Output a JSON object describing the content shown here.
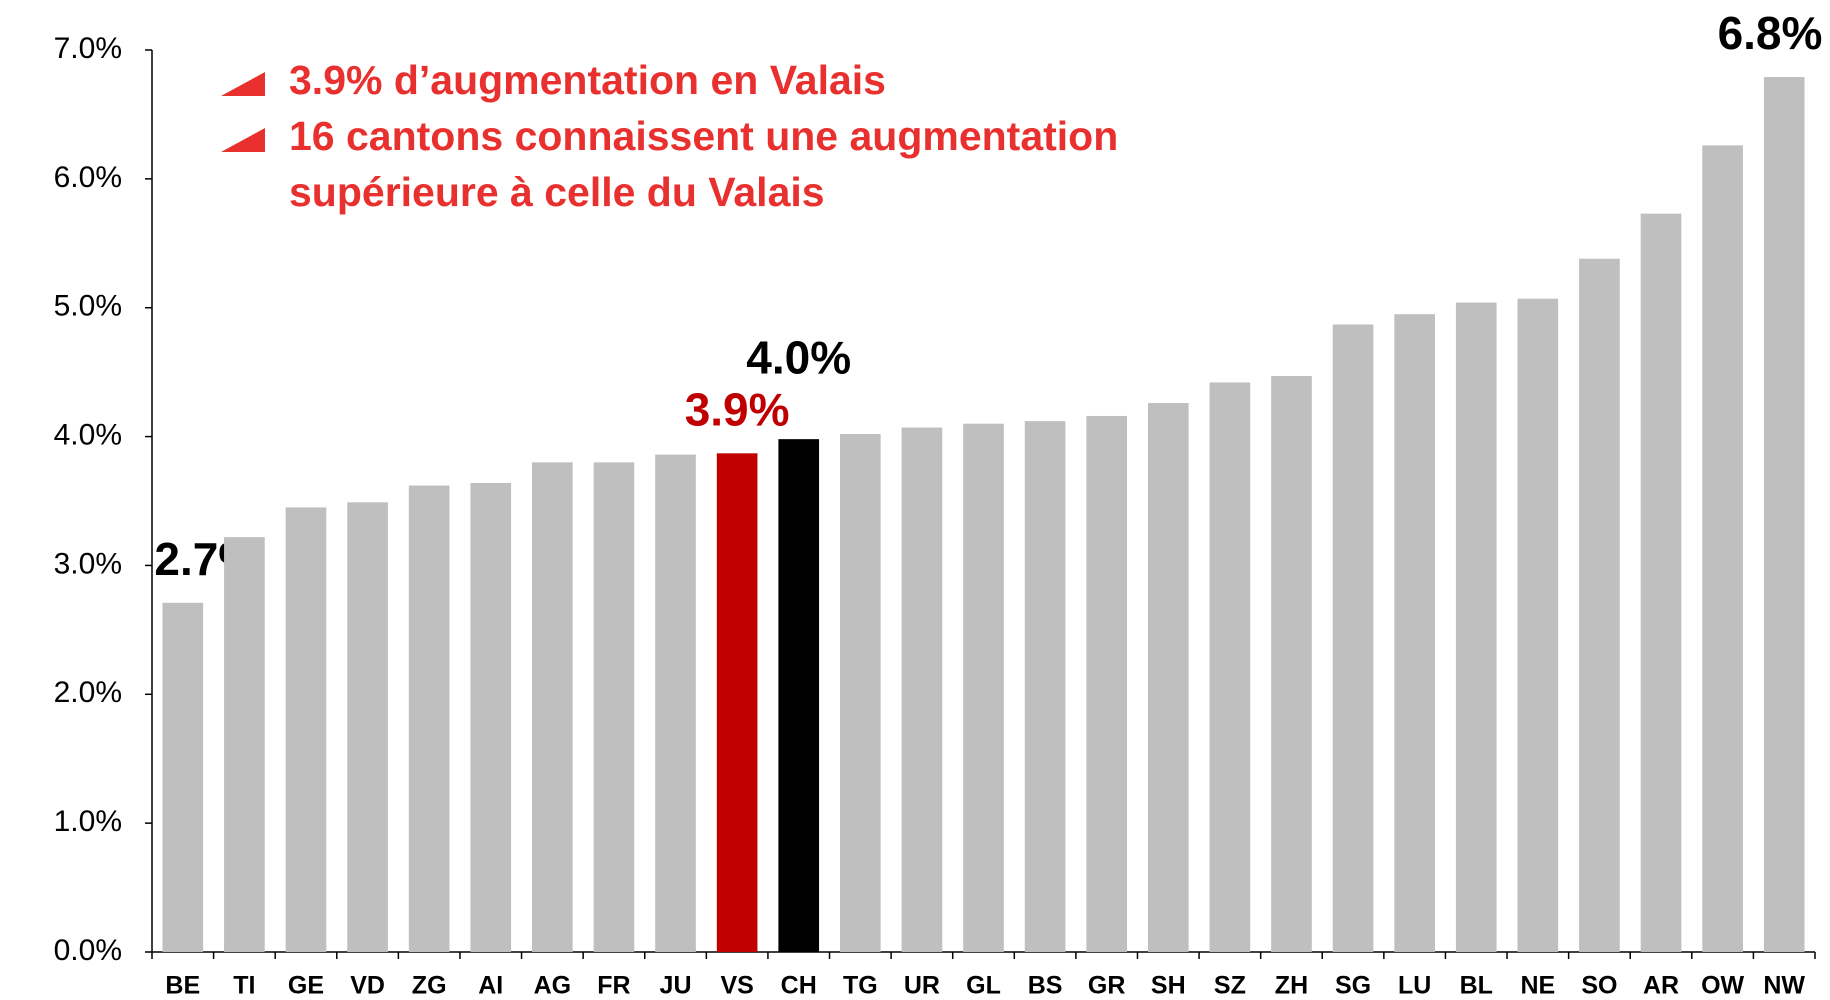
{
  "chart_data": {
    "type": "bar",
    "categories": [
      "BE",
      "TI",
      "GE",
      "VD",
      "ZG",
      "AI",
      "AG",
      "FR",
      "JU",
      "VS",
      "CH",
      "TG",
      "UR",
      "GL",
      "BS",
      "GR",
      "SH",
      "SZ",
      "ZH",
      "SG",
      "LU",
      "BL",
      "NE",
      "SO",
      "AR",
      "OW",
      "NW"
    ],
    "values": [
      2.71,
      3.22,
      3.45,
      3.49,
      3.62,
      3.64,
      3.8,
      3.8,
      3.86,
      3.87,
      3.98,
      4.02,
      4.07,
      4.1,
      4.12,
      4.16,
      4.26,
      4.42,
      4.47,
      4.87,
      4.95,
      5.04,
      5.07,
      5.38,
      5.73,
      6.26,
      6.79
    ],
    "value_labels": [
      "2.7%",
      null,
      null,
      null,
      null,
      null,
      null,
      null,
      null,
      "3.9%",
      "4.0%",
      null,
      null,
      null,
      null,
      null,
      null,
      null,
      null,
      null,
      null,
      null,
      null,
      null,
      null,
      null,
      "6.8%"
    ],
    "colors": [
      "#bfbfbf",
      "#bfbfbf",
      "#bfbfbf",
      "#bfbfbf",
      "#bfbfbf",
      "#bfbfbf",
      "#bfbfbf",
      "#bfbfbf",
      "#bfbfbf",
      "#c00000",
      "#000000",
      "#bfbfbf",
      "#bfbfbf",
      "#bfbfbf",
      "#bfbfbf",
      "#bfbfbf",
      "#bfbfbf",
      "#bfbfbf",
      "#bfbfbf",
      "#bfbfbf",
      "#bfbfbf",
      "#bfbfbf",
      "#bfbfbf",
      "#bfbfbf",
      "#bfbfbf",
      "#bfbfbf",
      "#bfbfbf"
    ],
    "value_label_colors": [
      "#000000",
      null,
      null,
      null,
      null,
      null,
      null,
      null,
      null,
      "#c00000",
      "#000000",
      null,
      null,
      null,
      null,
      null,
      null,
      null,
      null,
      null,
      null,
      null,
      null,
      null,
      null,
      null,
      "#000000"
    ],
    "ylim": [
      0,
      7
    ],
    "yticks": [
      {
        "value": 0,
        "label": "0.0%"
      },
      {
        "value": 1,
        "label": "1.0%"
      },
      {
        "value": 2,
        "label": "2.0%"
      },
      {
        "value": 3,
        "label": "3.0%"
      },
      {
        "value": 4,
        "label": "4.0%"
      },
      {
        "value": 5,
        "label": "5.0%"
      },
      {
        "value": 6,
        "label": "6.0%"
      },
      {
        "value": 7,
        "label": "7.0%"
      }
    ],
    "grid": false,
    "annotations": [
      "3.9% d’augmentation en Valais",
      "16 cantons connaissent une augmentation supérieure à celle du Valais"
    ]
  }
}
